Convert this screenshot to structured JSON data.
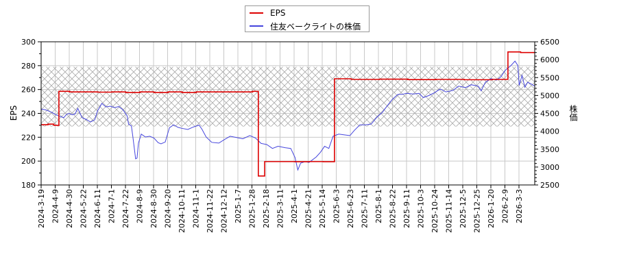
{
  "legend": {
    "items": [
      {
        "label": "EPS",
        "color": "#dd0000"
      },
      {
        "label": "住友ベークライトの株価",
        "color": "#4444dd"
      }
    ]
  },
  "axes": {
    "left_title": "EPS",
    "right_title": "株価"
  },
  "chart_data": {
    "type": "line",
    "title": "",
    "xlabel": "",
    "ylabel": "EPS",
    "y2label": "株価",
    "ylim": [
      180,
      300
    ],
    "y2lim": [
      2500,
      6500
    ],
    "yticks": [
      180,
      200,
      220,
      240,
      260,
      280,
      300
    ],
    "y2ticks": [
      2500,
      3000,
      3500,
      4000,
      4500,
      5000,
      5500,
      6000,
      6500
    ],
    "grid": true,
    "legend_position": "top-center",
    "x_tick_labels": [
      "2024-3-19",
      "2024-4-9",
      "2024-4-30",
      "2024-5-22",
      "2024-6-11",
      "2024-7-1",
      "2024-7-22",
      "2024-8-9",
      "2024-8-30",
      "2024-9-20",
      "2024-10-11",
      "2024-11-1",
      "2024-11-22",
      "2024-12-12",
      "2025-1-7",
      "2025-1-28",
      "2025-2-18",
      "2025-3-11",
      "2025-4-1",
      "2025-4-21",
      "2025-5-14",
      "2025-6-3",
      "2025-6-23",
      "2025-7-11",
      "2025-8-1",
      "2025-8-22",
      "2025-9-11",
      "2025-10-3",
      "2025-10-24",
      "2025-11-14",
      "2025-12-5",
      "2025-12-25",
      "2026-1-20",
      "2026-2-9",
      "2026-3-3"
    ],
    "shaded_band": {
      "axis": "left",
      "from": 229,
      "to": 279,
      "pattern": "crosshatch"
    },
    "series": [
      {
        "name": "EPS",
        "axis": "left",
        "color": "#dd0000",
        "step": true,
        "points": [
          [
            0,
            230.5
          ],
          [
            5,
            231
          ],
          [
            7,
            231
          ],
          [
            9,
            230
          ],
          [
            12.5,
            230
          ],
          [
            12.6,
            258.5
          ],
          [
            20,
            258
          ],
          [
            30,
            258
          ],
          [
            40,
            257.8
          ],
          [
            50,
            258
          ],
          [
            60,
            257.5
          ],
          [
            70,
            258
          ],
          [
            80,
            257.5
          ],
          [
            90,
            258
          ],
          [
            100,
            257.5
          ],
          [
            110,
            258
          ],
          [
            120,
            258
          ],
          [
            150,
            258.5
          ],
          [
            153.5,
            258.5
          ],
          [
            154,
            187.5
          ],
          [
            158,
            187.5
          ],
          [
            158.5,
            199.6
          ],
          [
            170,
            199.6
          ],
          [
            180,
            199.5
          ],
          [
            190,
            199.6
          ],
          [
            200,
            199.5
          ],
          [
            207.5,
            199.5
          ],
          [
            208,
            269
          ],
          [
            220,
            268.5
          ],
          [
            240,
            268.7
          ],
          [
            260,
            268.3
          ],
          [
            280,
            268.5
          ],
          [
            300,
            268.2
          ],
          [
            320,
            268.5
          ],
          [
            330,
            268.5
          ],
          [
            331,
            291.5
          ],
          [
            340,
            291
          ],
          [
            350,
            291.2
          ]
        ]
      },
      {
        "name": "住友ベークライトの株価",
        "axis": "right",
        "color": "#4444dd",
        "points": [
          [
            0,
            4620
          ],
          [
            3,
            4600
          ],
          [
            5,
            4570
          ],
          [
            8,
            4520
          ],
          [
            10,
            4470
          ],
          [
            13,
            4420
          ],
          [
            16,
            4380
          ],
          [
            18,
            4470
          ],
          [
            20,
            4500
          ],
          [
            22,
            4460
          ],
          [
            24,
            4480
          ],
          [
            26,
            4640
          ],
          [
            29,
            4380
          ],
          [
            32,
            4330
          ],
          [
            35,
            4260
          ],
          [
            38,
            4320
          ],
          [
            40,
            4570
          ],
          [
            42,
            4700
          ],
          [
            43,
            4780
          ],
          [
            46,
            4680
          ],
          [
            49,
            4700
          ],
          [
            52,
            4660
          ],
          [
            55,
            4690
          ],
          [
            58,
            4600
          ],
          [
            61,
            4430
          ],
          [
            62,
            4200
          ],
          [
            64,
            4150
          ],
          [
            65,
            3860
          ],
          [
            67,
            3230
          ],
          [
            68,
            3250
          ],
          [
            69,
            3670
          ],
          [
            71,
            3920
          ],
          [
            74,
            3840
          ],
          [
            77,
            3860
          ],
          [
            80,
            3810
          ],
          [
            83,
            3680
          ],
          [
            85,
            3650
          ],
          [
            88,
            3700
          ],
          [
            91,
            4100
          ],
          [
            94,
            4180
          ],
          [
            97,
            4110
          ],
          [
            100,
            4080
          ],
          [
            104,
            4050
          ],
          [
            108,
            4120
          ],
          [
            112,
            4170
          ],
          [
            114,
            4060
          ],
          [
            117,
            3840
          ],
          [
            121,
            3690
          ],
          [
            126,
            3670
          ],
          [
            130,
            3770
          ],
          [
            134,
            3860
          ],
          [
            138,
            3830
          ],
          [
            143,
            3790
          ],
          [
            148,
            3880
          ],
          [
            152,
            3810
          ],
          [
            156,
            3660
          ],
          [
            160,
            3630
          ],
          [
            164,
            3520
          ],
          [
            168,
            3580
          ],
          [
            173,
            3540
          ],
          [
            177,
            3520
          ],
          [
            180,
            3270
          ],
          [
            182,
            2920
          ],
          [
            184,
            3110
          ],
          [
            187,
            3150
          ],
          [
            190,
            3130
          ],
          [
            195,
            3280
          ],
          [
            198,
            3410
          ],
          [
            201,
            3580
          ],
          [
            204,
            3520
          ],
          [
            207,
            3860
          ],
          [
            211,
            3920
          ],
          [
            215,
            3900
          ],
          [
            219,
            3880
          ],
          [
            222,
            4020
          ],
          [
            226,
            4180
          ],
          [
            230,
            4180
          ],
          [
            234,
            4200
          ],
          [
            238,
            4390
          ],
          [
            242,
            4530
          ],
          [
            245,
            4690
          ],
          [
            249,
            4890
          ],
          [
            253,
            5030
          ],
          [
            256,
            5030
          ],
          [
            259,
            5060
          ],
          [
            264,
            5040
          ],
          [
            268,
            5060
          ],
          [
            271,
            4940
          ],
          [
            275,
            5000
          ],
          [
            279,
            5080
          ],
          [
            283,
            5180
          ],
          [
            287,
            5100
          ],
          [
            292,
            5140
          ],
          [
            296,
            5260
          ],
          [
            301,
            5220
          ],
          [
            305,
            5300
          ],
          [
            310,
            5260
          ],
          [
            312,
            5130
          ],
          [
            315,
            5370
          ],
          [
            319,
            5470
          ],
          [
            323,
            5430
          ],
          [
            326,
            5520
          ],
          [
            329,
            5700
          ],
          [
            333,
            5830
          ],
          [
            336,
            5960
          ],
          [
            338,
            5840
          ],
          [
            339,
            5280
          ],
          [
            341,
            5560
          ],
          [
            343,
            5230
          ],
          [
            345,
            5370
          ],
          [
            348,
            5310
          ],
          [
            350,
            5260
          ]
        ]
      }
    ]
  }
}
